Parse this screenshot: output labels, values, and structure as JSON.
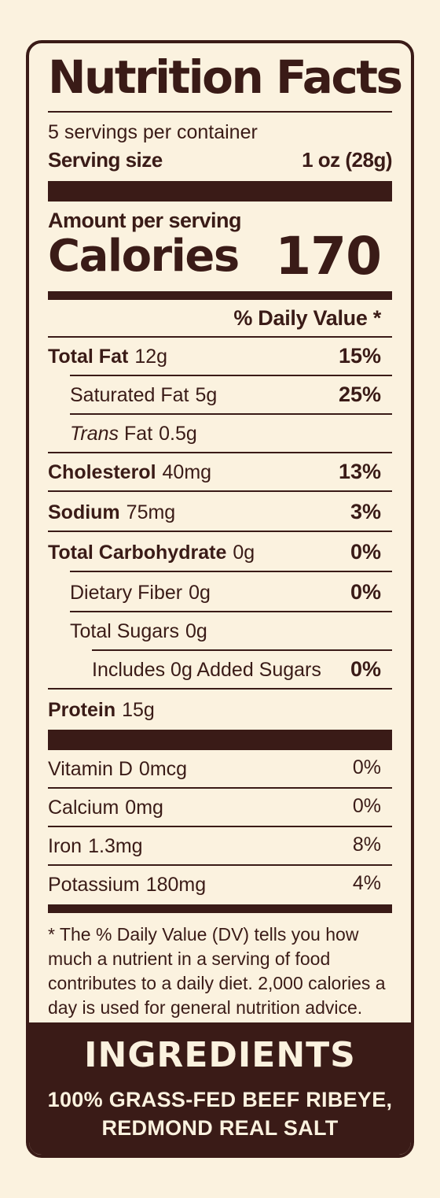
{
  "title": "Nutrition Facts",
  "servings_per_container": "5 servings per container",
  "serving_size_label": "Serving size",
  "serving_size_value": "1 oz (28g)",
  "amount_per_serving": "Amount per serving",
  "calories_label": "Calories",
  "calories_value": "170",
  "daily_value_header": "% Daily Value *",
  "nutrients": [
    {
      "name": "Total Fat",
      "amount": "12g",
      "dv": "15%"
    },
    {
      "name": "Saturated Fat",
      "amount": "5g",
      "dv": "25%"
    },
    {
      "name_italic": "Trans",
      "name": "Fat",
      "amount": "0.5g",
      "dv": ""
    },
    {
      "name": "Cholesterol",
      "amount": "40mg",
      "dv": "13%"
    },
    {
      "name": "Sodium",
      "amount": "75mg",
      "dv": "3%"
    },
    {
      "name": "Total Carbohydrate",
      "amount": "0g",
      "dv": "0%"
    },
    {
      "name": "Dietary Fiber",
      "amount": "0g",
      "dv": "0%"
    },
    {
      "name": "Total Sugars",
      "amount": "0g",
      "dv": ""
    },
    {
      "name": "Includes 0g Added Sugars",
      "amount": "",
      "dv": "0%"
    },
    {
      "name": "Protein",
      "amount": "15g",
      "dv": ""
    }
  ],
  "vitamins": [
    {
      "name": "Vitamin D",
      "amount": "0mcg",
      "dv": "0%"
    },
    {
      "name": "Calcium",
      "amount": "0mg",
      "dv": "0%"
    },
    {
      "name": "Iron",
      "amount": "1.3mg",
      "dv": "8%"
    },
    {
      "name": "Potassium",
      "amount": "180mg",
      "dv": "4%"
    }
  ],
  "footnote": "* The % Daily Value (DV) tells you how much a nutrient in a serving of food contributes to a daily diet. 2,000 calories a day is used for general nutrition advice.",
  "ingredients": {
    "title": "INGREDIENTS",
    "line1": "100% GRASS-FED BEEF RIBEYE,",
    "line2": "REDMOND REAL SALT"
  },
  "colors": {
    "ink": "#3a1b17",
    "paper": "#fbf2df"
  }
}
